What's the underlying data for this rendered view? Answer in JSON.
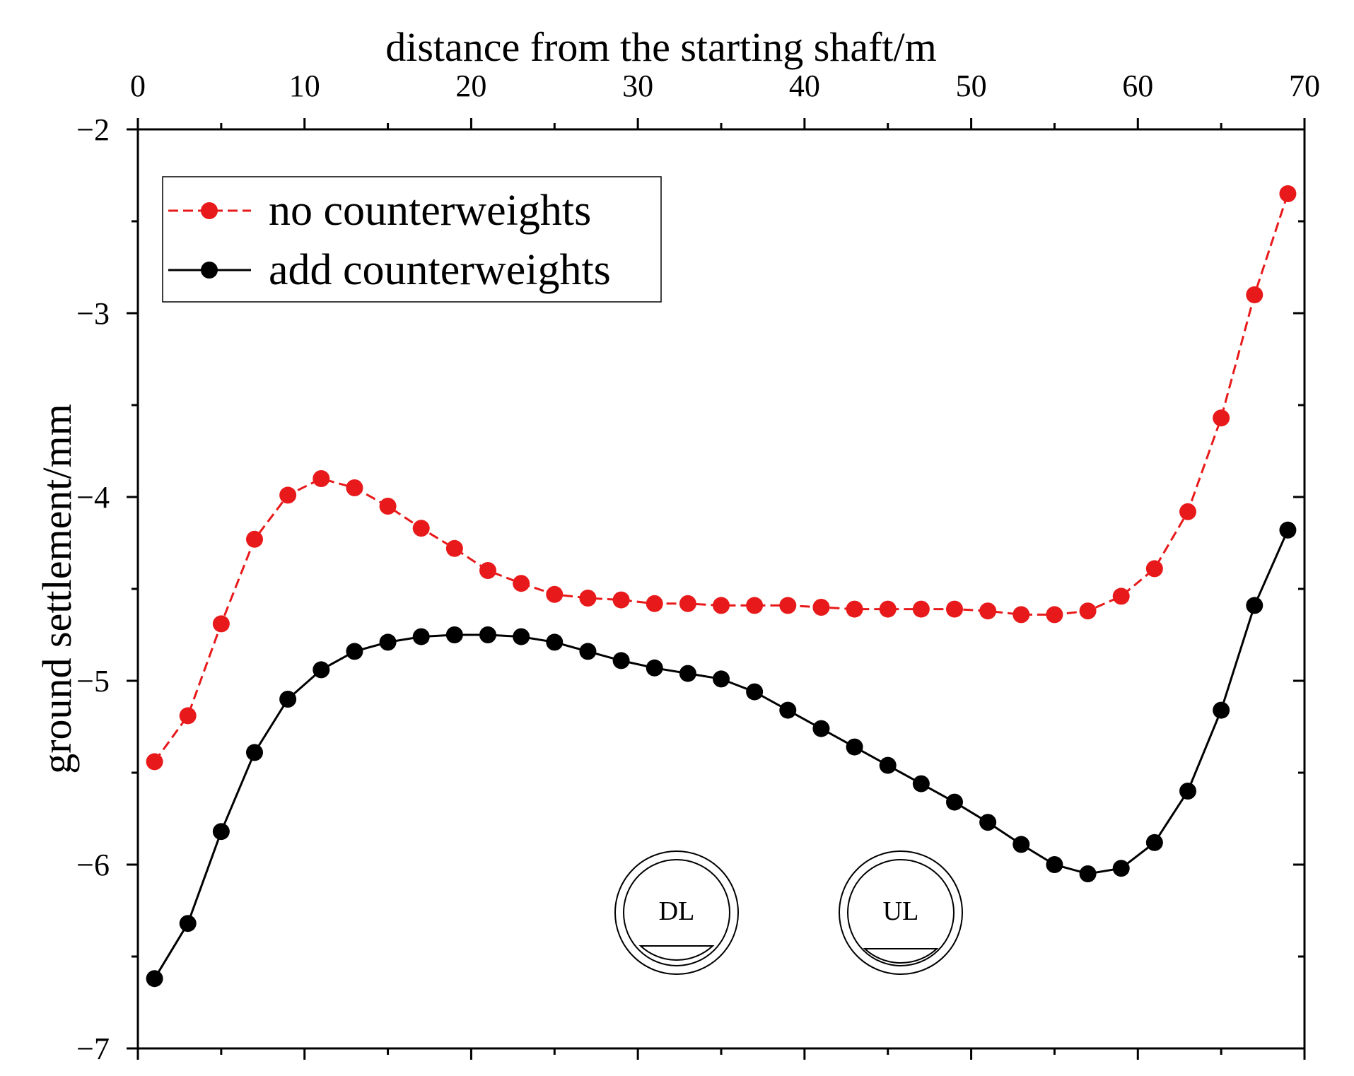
{
  "chart_data": {
    "type": "line",
    "xlabel": "distance from the starting shaft/m",
    "ylabel": "ground settlement/mm",
    "xlim": [
      0,
      70
    ],
    "ylim": [
      -7,
      -2
    ],
    "x_ticks": [
      0,
      10,
      20,
      30,
      40,
      50,
      60,
      70
    ],
    "y_ticks": [
      -2,
      -3,
      -4,
      -5,
      -6,
      -7
    ],
    "x_tick_labels": [
      "0",
      "10",
      "20",
      "30",
      "40",
      "50",
      "60",
      "70"
    ],
    "y_tick_labels": [
      "−2",
      "−3",
      "−4",
      "−5",
      "−6",
      "−7"
    ],
    "x_axis_position": "top",
    "legend_position": "top-left",
    "x": [
      1,
      3,
      5,
      7,
      9,
      11,
      13,
      15,
      17,
      19,
      21,
      23,
      25,
      27,
      29,
      31,
      33,
      35,
      37,
      39,
      41,
      43,
      45,
      47,
      49,
      51,
      53,
      55,
      57,
      59,
      61,
      63,
      65,
      67,
      69
    ],
    "series": [
      {
        "name": "no counterweights",
        "color": "#e8191a",
        "line_style": "dashed",
        "values": [
          -5.44,
          -5.19,
          -4.69,
          -4.23,
          -3.99,
          -3.9,
          -3.95,
          -4.05,
          -4.17,
          -4.28,
          -4.4,
          -4.47,
          -4.53,
          -4.55,
          -4.56,
          -4.58,
          -4.58,
          -4.59,
          -4.59,
          -4.59,
          -4.6,
          -4.61,
          -4.61,
          -4.61,
          -4.61,
          -4.62,
          -4.64,
          -4.64,
          -4.62,
          -4.54,
          -4.39,
          -4.08,
          -3.57,
          -2.9,
          -2.35
        ]
      },
      {
        "name": "add counterweights",
        "color": "#000000",
        "line_style": "solid",
        "values": [
          -6.62,
          -6.32,
          -5.82,
          -5.39,
          -5.1,
          -4.94,
          -4.84,
          -4.79,
          -4.76,
          -4.75,
          -4.75,
          -4.76,
          -4.79,
          -4.84,
          -4.89,
          -4.93,
          -4.96,
          -4.99,
          -5.06,
          -5.16,
          -5.26,
          -5.36,
          -5.46,
          -5.56,
          -5.66,
          -5.77,
          -5.89,
          -6.0,
          -6.05,
          -6.02,
          -5.88,
          -5.6,
          -5.16,
          -4.59,
          -4.18
        ]
      }
    ],
    "annotations": [
      {
        "label": "DL",
        "description": "tunnel cross-section"
      },
      {
        "label": "UL",
        "description": "tunnel cross-section"
      }
    ]
  }
}
